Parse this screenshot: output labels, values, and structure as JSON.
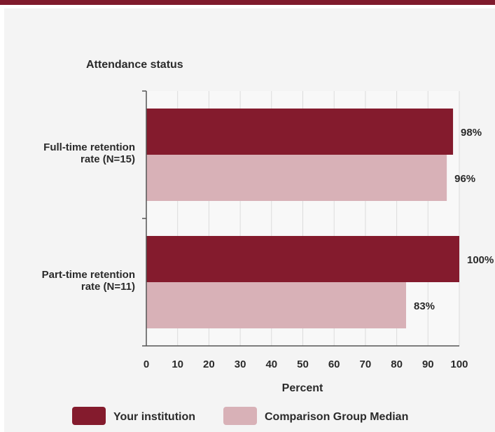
{
  "chart_data": {
    "type": "bar",
    "orientation": "horizontal",
    "title": "Attendance status",
    "xlabel": "Percent",
    "xlim": [
      0,
      100
    ],
    "x_ticks": [
      "0",
      "10",
      "20",
      "30",
      "40",
      "50",
      "60",
      "70",
      "80",
      "90",
      "100"
    ],
    "grid": true,
    "legend_position": "bottom",
    "categories": [
      [
        "Full-time retention",
        "rate (N=15)"
      ],
      [
        "Part-time retention",
        "rate (N=11)"
      ]
    ],
    "series": [
      {
        "name": "Your institution",
        "values": [
          98,
          100
        ],
        "labels": [
          "98%",
          "100%"
        ],
        "color": "#841b2d"
      },
      {
        "name": "Comparison Group Median",
        "values": [
          96,
          83
        ],
        "labels": [
          "96%",
          "83%"
        ],
        "color": "#d8b1b7"
      }
    ]
  },
  "colors": {
    "accent": "#7f1a2c",
    "panel": "#f4f4f4"
  }
}
